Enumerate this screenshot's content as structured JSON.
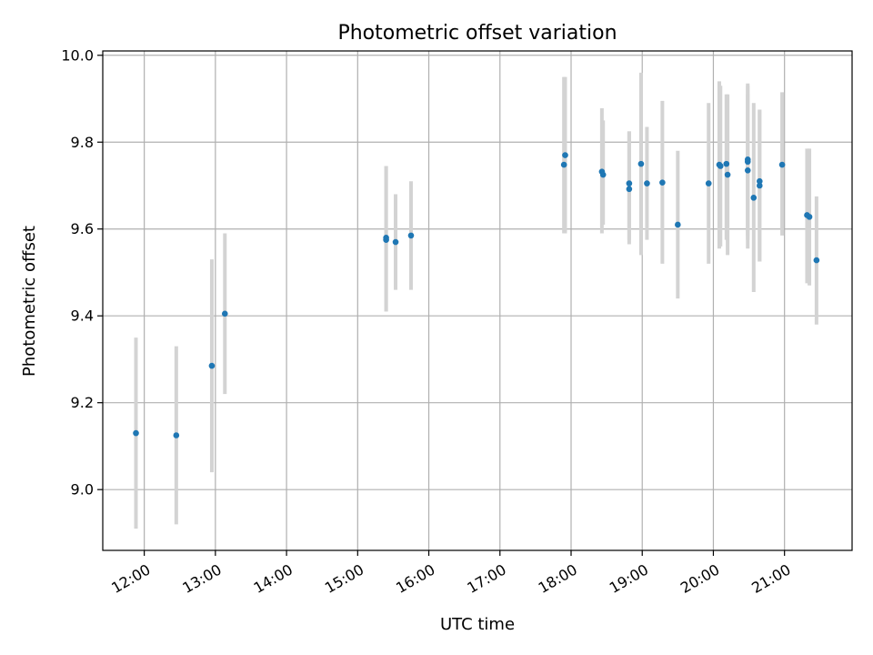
{
  "chart_data": {
    "type": "scatter",
    "title": "Photometric offset variation",
    "xlabel": "UTC time",
    "ylabel": "Photometric offset",
    "xlim": [
      "11:25",
      "21:57"
    ],
    "ylim": [
      8.86,
      10.01
    ],
    "xticks": [
      "12:00",
      "13:00",
      "14:00",
      "15:00",
      "16:00",
      "17:00",
      "18:00",
      "19:00",
      "20:00",
      "21:00"
    ],
    "yticks": [
      "9.0",
      "9.2",
      "9.4",
      "9.6",
      "9.8",
      "10.0"
    ],
    "grid": true,
    "colors": {
      "points": "#1f77b4",
      "errorbars": "#d3d3d3",
      "grid": "#b0b0b0"
    },
    "points": [
      {
        "x": "11:53",
        "y": 9.13,
        "ylow": 8.91,
        "yhigh": 9.35
      },
      {
        "x": "12:27",
        "y": 9.125,
        "ylow": 8.92,
        "yhigh": 9.33
      },
      {
        "x": "12:57",
        "y": 9.285,
        "ylow": 9.04,
        "yhigh": 9.53
      },
      {
        "x": "13:08",
        "y": 9.405,
        "ylow": 9.22,
        "yhigh": 9.59
      },
      {
        "x": "15:24",
        "y": 9.58,
        "ylow": 9.41,
        "yhigh": 9.745
      },
      {
        "x": "15:24",
        "y": 9.575,
        "ylow": 9.41,
        "yhigh": 9.745
      },
      {
        "x": "15:32",
        "y": 9.57,
        "ylow": 9.46,
        "yhigh": 9.68
      },
      {
        "x": "15:45",
        "y": 9.585,
        "ylow": 9.46,
        "yhigh": 9.71
      },
      {
        "x": "17:55",
        "y": 9.77,
        "ylow": 9.59,
        "yhigh": 9.95
      },
      {
        "x": "17:54",
        "y": 9.748,
        "ylow": 9.59,
        "yhigh": 9.95
      },
      {
        "x": "18:26",
        "y": 9.732,
        "ylow": 9.59,
        "yhigh": 9.878
      },
      {
        "x": "18:27",
        "y": 9.725,
        "ylow": 9.61,
        "yhigh": 9.85
      },
      {
        "x": "18:49",
        "y": 9.705,
        "ylow": 9.565,
        "yhigh": 9.825
      },
      {
        "x": "18:49",
        "y": 9.692,
        "ylow": 9.575,
        "yhigh": 9.825
      },
      {
        "x": "18:59",
        "y": 9.75,
        "ylow": 9.54,
        "yhigh": 9.96
      },
      {
        "x": "19:04",
        "y": 9.705,
        "ylow": 9.575,
        "yhigh": 9.835
      },
      {
        "x": "19:17",
        "y": 9.707,
        "ylow": 9.52,
        "yhigh": 9.895
      },
      {
        "x": "19:30",
        "y": 9.61,
        "ylow": 9.44,
        "yhigh": 9.78
      },
      {
        "x": "19:56",
        "y": 9.705,
        "ylow": 9.52,
        "yhigh": 9.89
      },
      {
        "x": "20:05",
        "y": 9.748,
        "ylow": 9.555,
        "yhigh": 9.94
      },
      {
        "x": "20:06",
        "y": 9.745,
        "ylow": 9.56,
        "yhigh": 9.93
      },
      {
        "x": "20:11",
        "y": 9.75,
        "ylow": 9.575,
        "yhigh": 9.91
      },
      {
        "x": "20:12",
        "y": 9.725,
        "ylow": 9.54,
        "yhigh": 9.91
      },
      {
        "x": "20:29",
        "y": 9.76,
        "ylow": 9.585,
        "yhigh": 9.935
      },
      {
        "x": "20:29",
        "y": 9.755,
        "ylow": 9.575,
        "yhigh": 9.93
      },
      {
        "x": "20:29",
        "y": 9.735,
        "ylow": 9.555,
        "yhigh": 9.91
      },
      {
        "x": "20:34",
        "y": 9.672,
        "ylow": 9.455,
        "yhigh": 9.89
      },
      {
        "x": "20:39",
        "y": 9.71,
        "ylow": 9.525,
        "yhigh": 9.875
      },
      {
        "x": "20:39",
        "y": 9.7,
        "ylow": 9.525,
        "yhigh": 9.875
      },
      {
        "x": "20:58",
        "y": 9.748,
        "ylow": 9.585,
        "yhigh": 9.915
      },
      {
        "x": "21:19",
        "y": 9.632,
        "ylow": 9.475,
        "yhigh": 9.785
      },
      {
        "x": "21:21",
        "y": 9.628,
        "ylow": 9.47,
        "yhigh": 9.785
      },
      {
        "x": "21:27",
        "y": 9.528,
        "ylow": 9.38,
        "yhigh": 9.675
      }
    ]
  }
}
